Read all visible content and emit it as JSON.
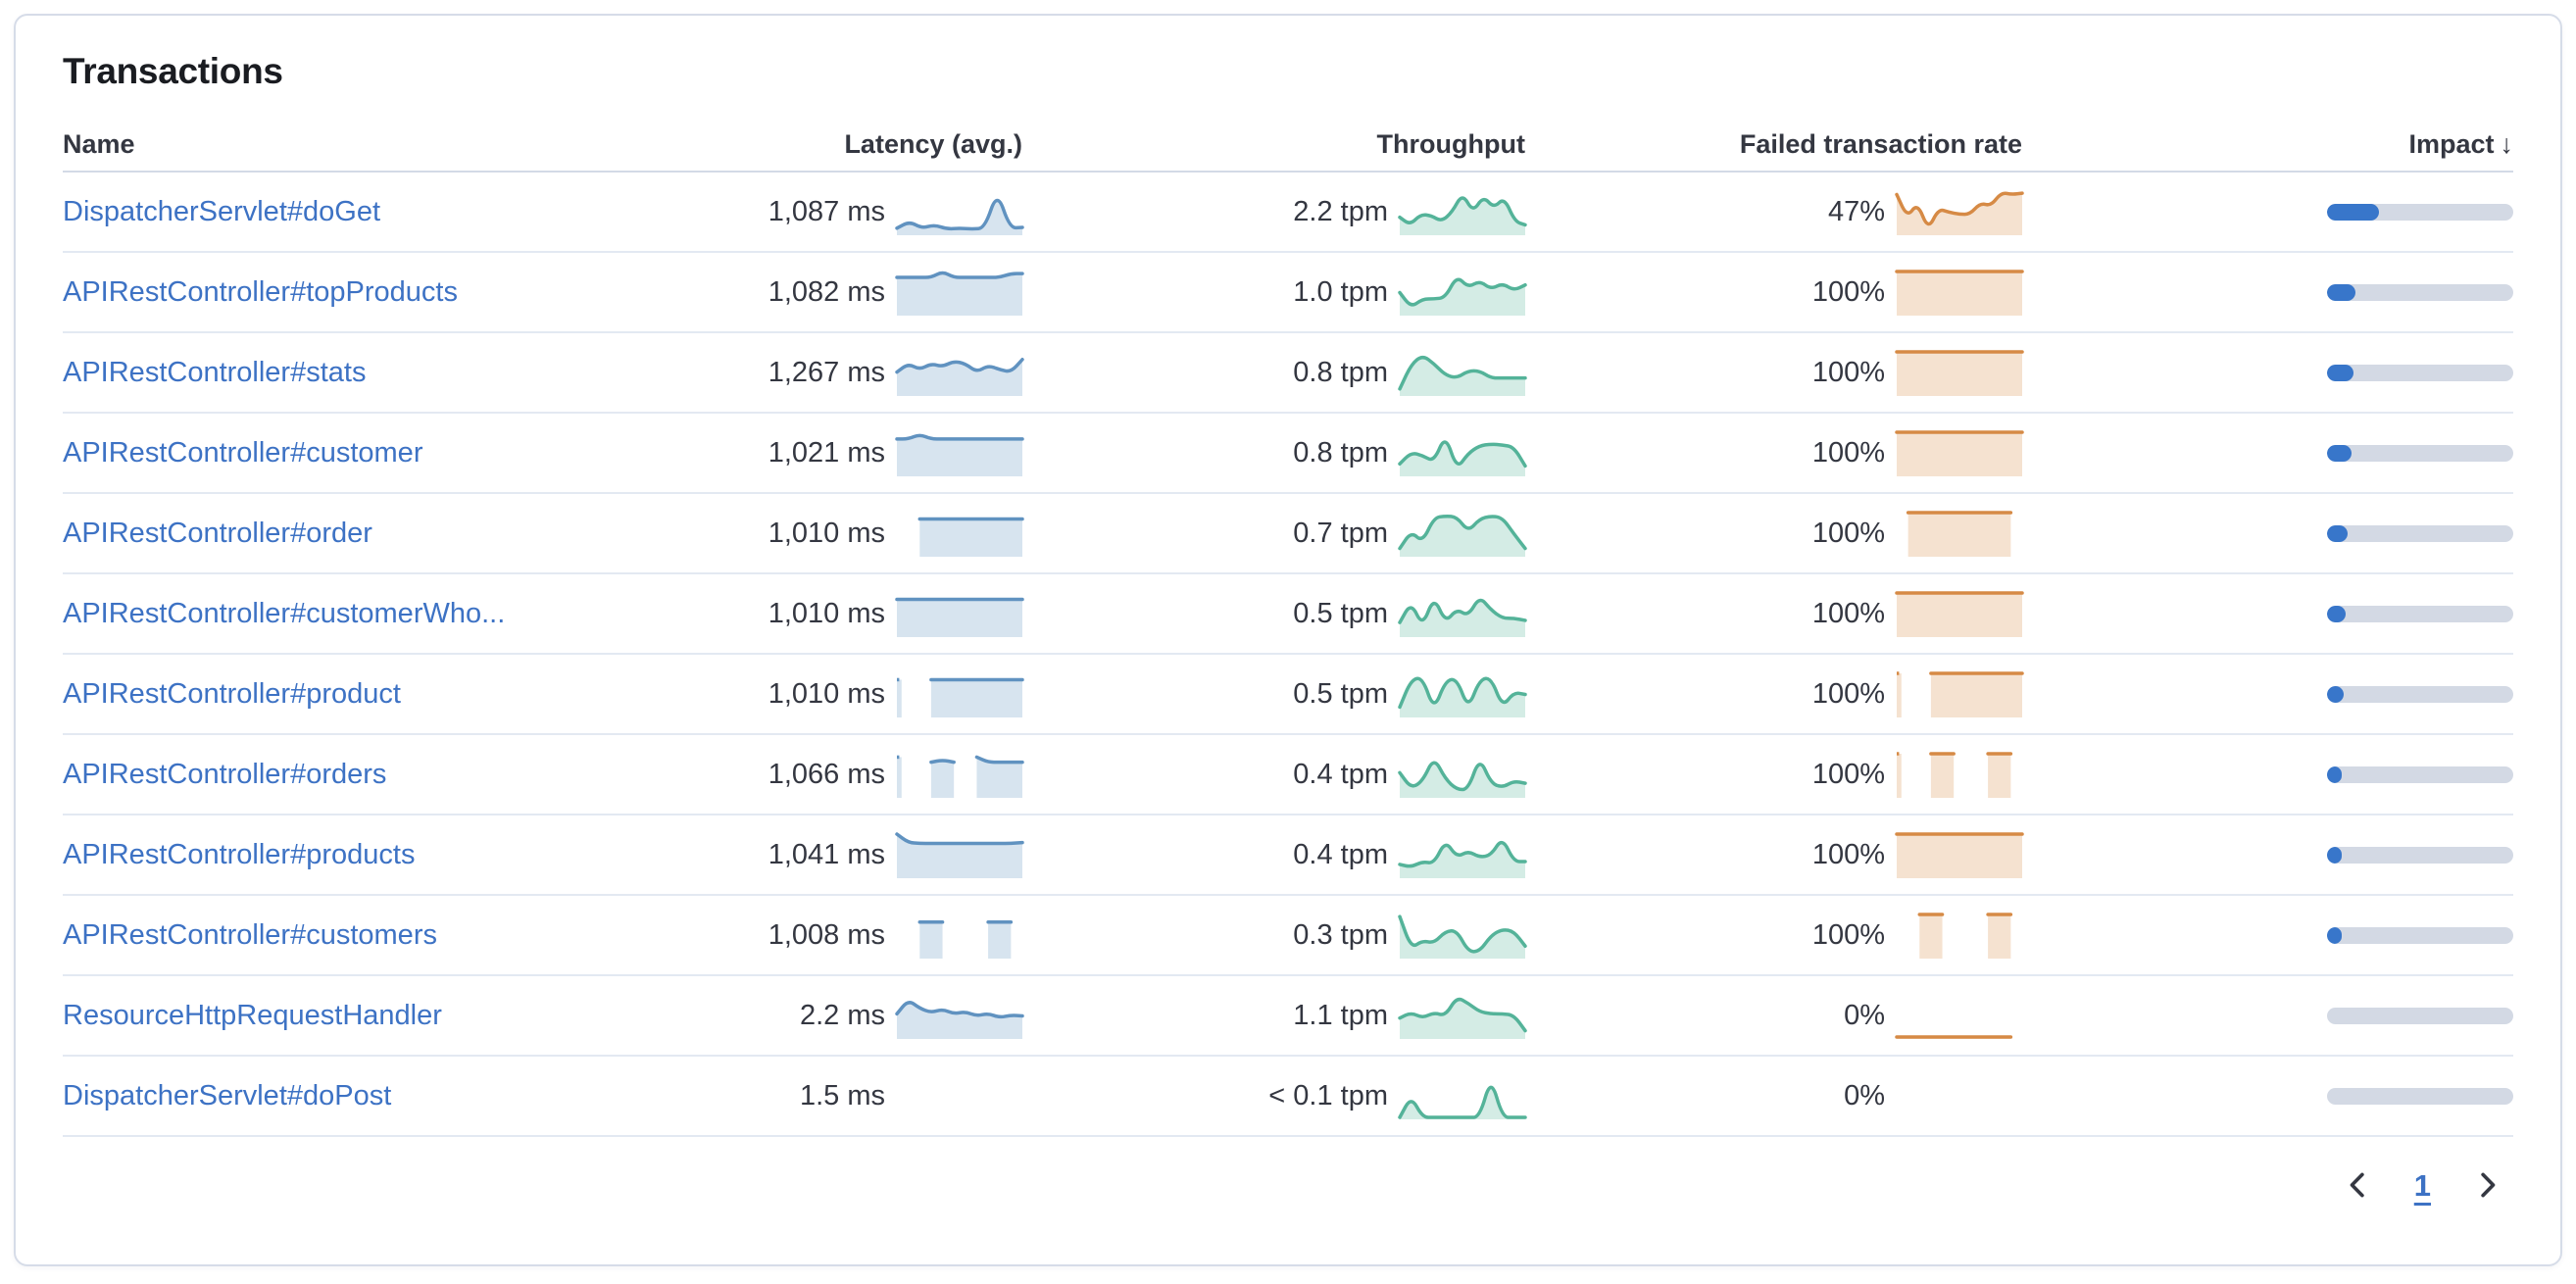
{
  "card": {
    "title": "Transactions"
  },
  "icons": {
    "sort_desc": "↓",
    "prev": "chevron-left-icon",
    "next": "chevron-right-icon"
  },
  "colors": {
    "link": "#3d72c4",
    "latency_line": "#6092c0",
    "throughput_line": "#54b399",
    "failed_line": "#d68a45",
    "impact_fill": "#3876ca",
    "impact_track": "#d3d9e4"
  },
  "pagination": {
    "page": "1"
  },
  "table": {
    "columns": [
      {
        "key": "name",
        "label": "Name"
      },
      {
        "key": "latency",
        "label": "Latency (avg.)"
      },
      {
        "key": "throughput",
        "label": "Throughput"
      },
      {
        "key": "failed",
        "label": "Failed transaction rate"
      },
      {
        "key": "impact",
        "label": "Impact",
        "sorted": "desc"
      }
    ],
    "rows": [
      {
        "name": "DispatcherServlet#doGet",
        "latency": "1,087 ms",
        "throughput": "2.2 tpm",
        "failed_rate": "47%",
        "impact_pct": 28,
        "latency_spark": [
          0.12,
          0.28,
          0.12,
          0.2,
          0.1,
          0.12,
          0.1,
          0.12,
          1.0,
          0.12,
          0.14
        ],
        "throughput_spark": [
          0.38,
          0.2,
          0.45,
          0.42,
          0.28,
          0.5,
          0.95,
          0.5,
          0.88,
          0.6,
          0.85,
          0.28,
          0.2
        ],
        "failed_spark": [
          0.92,
          0.38,
          0.72,
          0.08,
          0.58,
          0.5,
          0.45,
          0.45,
          0.72,
          0.65,
          0.97,
          0.92,
          0.95
        ]
      },
      {
        "name": "APIRestController#topProducts",
        "latency": "1,082 ms",
        "throughput": "1.0 tpm",
        "failed_rate": "100%",
        "impact_pct": 15,
        "latency_spark": [
          0.86,
          0.86,
          0.86,
          0.86,
          1.0,
          0.86,
          0.86,
          0.86,
          0.86,
          0.86,
          0.95,
          0.95
        ],
        "throughput_spark": [
          0.5,
          0.15,
          0.35,
          0.35,
          0.38,
          0.9,
          0.62,
          0.78,
          0.58,
          0.72,
          0.55,
          0.68
        ],
        "failed_spark": [
          1,
          1,
          1,
          1,
          1,
          1,
          1,
          1,
          1,
          1,
          1,
          1
        ]
      },
      {
        "name": "APIRestController#stats",
        "latency": "1,267 ms",
        "throughput": "0.8 tpm",
        "failed_rate": "100%",
        "impact_pct": 14,
        "latency_spark": [
          0.52,
          0.72,
          0.58,
          0.72,
          0.65,
          0.78,
          0.72,
          0.52,
          0.68,
          0.58,
          0.52,
          0.82
        ],
        "throughput_spark": [
          0.12,
          0.7,
          0.92,
          0.72,
          0.45,
          0.38,
          0.55,
          0.55,
          0.38,
          0.38,
          0.38,
          0.38
        ],
        "failed_spark": [
          1,
          1,
          1,
          1,
          1,
          1,
          1,
          1,
          1,
          1,
          1,
          1
        ]
      },
      {
        "name": "APIRestController#customer",
        "latency": "1,021 ms",
        "throughput": "0.8 tpm",
        "failed_rate": "100%",
        "impact_pct": 13,
        "latency_spark": [
          0.84,
          0.84,
          0.95,
          0.84,
          0.84,
          0.84,
          0.84,
          0.84,
          0.84,
          0.84,
          0.84,
          0.84
        ],
        "throughput_spark": [
          0.25,
          0.52,
          0.45,
          0.3,
          0.95,
          0.12,
          0.5,
          0.68,
          0.72,
          0.7,
          0.65,
          0.2
        ],
        "failed_spark": [
          1,
          1,
          1,
          1,
          1,
          1,
          1,
          1,
          1,
          1,
          1,
          1
        ]
      },
      {
        "name": "APIRestController#order",
        "latency": "1,010 ms",
        "throughput": "0.7 tpm",
        "failed_rate": "100%",
        "impact_pct": 11,
        "latency_spark": [
          null,
          null,
          0.85,
          0.85,
          0.85,
          0.85,
          0.85,
          0.85,
          0.85,
          0.85,
          0.85,
          0.85
        ],
        "throughput_spark": [
          0.15,
          0.55,
          0.3,
          0.88,
          0.92,
          0.9,
          0.55,
          0.85,
          0.92,
          0.88,
          0.5,
          0.15
        ],
        "failed_spark": [
          null,
          1,
          1,
          1,
          1,
          1,
          1,
          1,
          1,
          1,
          1,
          null
        ]
      },
      {
        "name": "APIRestController#customerWho...",
        "latency": "1,010 ms",
        "throughput": "0.5 tpm",
        "failed_rate": "100%",
        "impact_pct": 10,
        "latency_spark": [
          0.85,
          0.85,
          0.85,
          0.85,
          0.85,
          0.85,
          0.85,
          0.85,
          0.85,
          0.85,
          0.85,
          0.85
        ],
        "throughput_spark": [
          0.3,
          0.78,
          0.2,
          0.92,
          0.3,
          0.62,
          0.45,
          0.92,
          0.6,
          0.4,
          0.4,
          0.35
        ],
        "failed_spark": [
          1,
          1,
          1,
          1,
          1,
          1,
          1,
          1,
          1,
          1,
          1,
          1
        ]
      },
      {
        "name": "APIRestController#product",
        "latency": "1,010 ms",
        "throughput": "0.5 tpm",
        "failed_rate": "100%",
        "impact_pct": 9,
        "latency_spark": [
          0.85,
          null,
          null,
          0.85,
          0.85,
          0.85,
          0.85,
          0.85,
          0.85,
          0.85,
          0.85,
          0.85
        ],
        "throughput_spark": [
          0.2,
          0.85,
          0.9,
          0.12,
          0.82,
          0.88,
          0.15,
          0.85,
          0.9,
          0.2,
          0.55,
          0.5
        ],
        "failed_spark": [
          1,
          null,
          null,
          1,
          1,
          1,
          1,
          1,
          1,
          1,
          1,
          1
        ]
      },
      {
        "name": "APIRestController#orders",
        "latency": "1,066 ms",
        "throughput": "0.4 tpm",
        "failed_rate": "100%",
        "impact_pct": 8,
        "latency_spark": [
          0.92,
          null,
          null,
          0.8,
          0.85,
          0.8,
          null,
          0.92,
          0.8,
          0.8,
          0.8,
          0.8
        ],
        "throughput_spark": [
          0.55,
          0.18,
          0.35,
          0.92,
          0.4,
          0.15,
          0.15,
          0.92,
          0.3,
          0.2,
          0.35,
          0.3
        ],
        "failed_spark": [
          1,
          null,
          null,
          1,
          1,
          1,
          null,
          null,
          1,
          1,
          1,
          null
        ]
      },
      {
        "name": "APIRestController#products",
        "latency": "1,041 ms",
        "throughput": "0.4 tpm",
        "failed_rate": "100%",
        "impact_pct": 8,
        "latency_spark": [
          1.0,
          0.8,
          0.78,
          0.78,
          0.78,
          0.78,
          0.78,
          0.78,
          0.78,
          0.78,
          0.78,
          0.8
        ],
        "throughput_spark": [
          0.28,
          0.22,
          0.35,
          0.3,
          0.85,
          0.45,
          0.6,
          0.45,
          0.5,
          0.92,
          0.35,
          0.35
        ],
        "failed_spark": [
          1,
          1,
          1,
          1,
          1,
          1,
          1,
          1,
          1,
          1,
          1,
          1
        ]
      },
      {
        "name": "APIRestController#customers",
        "latency": "1,008 ms",
        "throughput": "0.3 tpm",
        "failed_rate": "100%",
        "impact_pct": 7,
        "latency_spark": [
          null,
          null,
          0.82,
          0.82,
          0.82,
          null,
          null,
          null,
          0.82,
          0.82,
          0.82,
          null
        ],
        "throughput_spark": [
          0.95,
          0.2,
          0.38,
          0.32,
          0.6,
          0.62,
          0.12,
          0.12,
          0.5,
          0.65,
          0.6,
          0.25
        ],
        "failed_spark": [
          null,
          null,
          1,
          1,
          1,
          null,
          null,
          null,
          1,
          1,
          1,
          null
        ]
      },
      {
        "name": "ResourceHttpRequestHandler",
        "latency": "2.2 ms",
        "throughput": "1.1 tpm",
        "failed_rate": "0%",
        "impact_pct": 0,
        "latency_spark": [
          0.55,
          0.88,
          0.68,
          0.58,
          0.66,
          0.55,
          0.6,
          0.5,
          0.56,
          0.46,
          0.52,
          0.5
        ],
        "throughput_spark": [
          0.45,
          0.58,
          0.45,
          0.58,
          0.5,
          0.95,
          0.8,
          0.6,
          0.55,
          0.55,
          0.52,
          0.15
        ],
        "failed_spark": [
          0,
          0,
          0,
          0,
          0,
          0,
          0,
          0,
          0,
          0,
          0,
          null
        ]
      },
      {
        "name": "DispatcherServlet#doPost",
        "latency": "1.5 ms",
        "throughput": "< 0.1 tpm",
        "failed_rate": "0%",
        "impact_pct": 0,
        "latency_spark": null,
        "throughput_spark": [
          0,
          0.5,
          0,
          0,
          0,
          0,
          0,
          0,
          0.95,
          0,
          0,
          0
        ],
        "failed_spark": null
      }
    ]
  }
}
